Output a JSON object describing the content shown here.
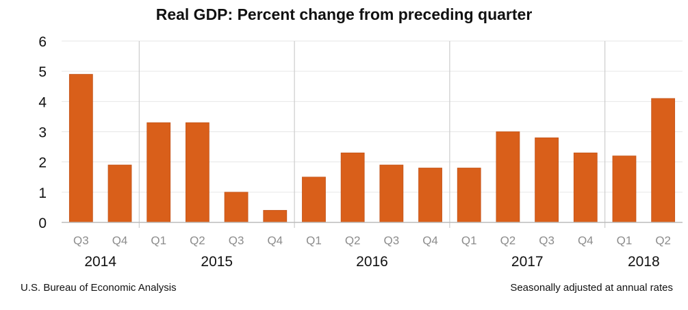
{
  "chart_data": {
    "type": "bar",
    "title": "Real GDP:  Percent change from preceding quarter",
    "xlabel": "",
    "ylabel": "",
    "ylim": [
      0,
      6
    ],
    "yticks": [
      0,
      1,
      2,
      3,
      4,
      5,
      6
    ],
    "grid": true,
    "categories": [
      "Q3",
      "Q4",
      "Q1",
      "Q2",
      "Q3",
      "Q4",
      "Q1",
      "Q2",
      "Q3",
      "Q4",
      "Q1",
      "Q2",
      "Q3",
      "Q4",
      "Q1",
      "Q2"
    ],
    "years": [
      {
        "label": "2014",
        "quarters": 2
      },
      {
        "label": "2015",
        "quarters": 4
      },
      {
        "label": "2016",
        "quarters": 4
      },
      {
        "label": "2017",
        "quarters": 4
      },
      {
        "label": "2018",
        "quarters": 2
      }
    ],
    "values": [
      4.9,
      1.9,
      3.3,
      3.3,
      1.0,
      0.4,
      1.5,
      2.3,
      1.9,
      1.8,
      1.8,
      3.0,
      2.8,
      2.3,
      2.2,
      4.1
    ],
    "bar_color": "#d95f1a"
  },
  "footer": {
    "source": "U.S. Bureau of Economic Analysis",
    "note": "Seasonally adjusted at annual rates"
  }
}
